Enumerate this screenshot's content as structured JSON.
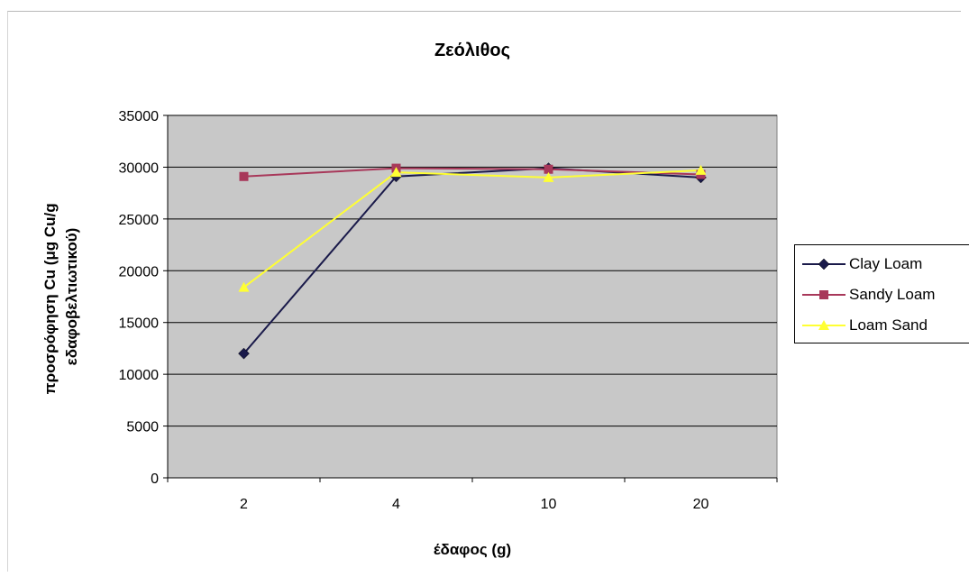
{
  "chart_data": {
    "type": "line",
    "title": "Ζεόλιθος",
    "xlabel": "έδαφος (g)",
    "ylabel": "προσρόφηση Cu (μg Cu/g εδαφοβελτιωτικού)",
    "ylabel_lines": [
      "προσρόφηση Cu (μg Cu/g",
      "εδαφοβελτιωτικού)"
    ],
    "categories": [
      "2",
      "4",
      "10",
      "20"
    ],
    "ylim": [
      0,
      35000
    ],
    "yticks": [
      0,
      5000,
      10000,
      15000,
      20000,
      25000,
      30000,
      35000
    ],
    "grid": "horizontal",
    "legend_position": "right",
    "series": [
      {
        "name": "Clay Loam",
        "values": [
          12000,
          29100,
          29900,
          29000
        ],
        "color": "#1a1a4a",
        "marker": "diamond"
      },
      {
        "name": "Sandy Loam",
        "values": [
          29100,
          29900,
          29800,
          29300
        ],
        "color": "#a8385a",
        "marker": "square"
      },
      {
        "name": "Loam Sand",
        "values": [
          18400,
          29500,
          29000,
          29700
        ],
        "color": "#ffff33",
        "marker": "triangle"
      }
    ]
  }
}
